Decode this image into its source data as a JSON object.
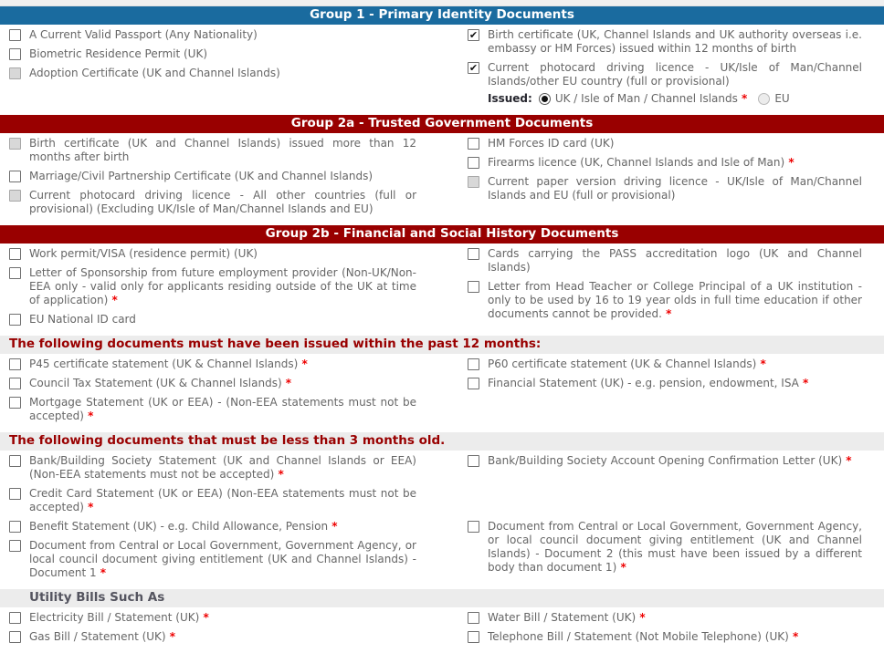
{
  "glyphs": {
    "check": "✔",
    "asterisk": "*"
  },
  "colors": {
    "header_blue": "#1a6b9f",
    "header_red": "#990000",
    "subheader_text": "#990000",
    "band_background": "#ececec",
    "label_text": "#666666",
    "required_asterisk": "#ee0000"
  },
  "sections": [
    {
      "id": "group1",
      "header": {
        "text": "Group 1 - Primary Identity Documents",
        "style": "blue"
      },
      "rows": [
        {
          "left": [
            {
              "label": "A Current Valid Passport (Any Nationality)"
            },
            {
              "label": "Biometric Residence Permit (UK)"
            },
            {
              "label": "Adoption Certificate (UK and Channel Islands)",
              "disabled": true
            }
          ],
          "right": [
            {
              "label": "Birth certificate (UK, Channel Islands and UK authority overseas i.e. embassy or HM Forces) issued within 12 months of birth",
              "checked": true
            },
            {
              "label": "Current photocard driving licence - UK/Isle of Man/Channel Islands/other EU country (full or provisional)",
              "checked": true,
              "radio": {
                "label": "Issued:",
                "options": [
                  {
                    "id": "uk",
                    "label": "UK / Isle of Man / Channel Islands",
                    "selected": true,
                    "required": true
                  },
                  {
                    "id": "eu",
                    "label": "EU",
                    "disabled": true
                  }
                ]
              }
            }
          ]
        }
      ]
    },
    {
      "id": "group2a",
      "header": {
        "text": "Group 2a - Trusted Government Documents",
        "style": "red"
      },
      "rows": [
        {
          "left": [
            {
              "label": "Birth certificate (UK and Channel Islands) issued more than 12 months after birth",
              "disabled": true
            },
            {
              "label": "Marriage/Civil Partnership Certificate (UK and Channel Islands)"
            },
            {
              "label": "Current photocard driving licence - All other countries (full or provisional) (Excluding UK/Isle of Man/Channel Islands and EU)",
              "disabled": true
            }
          ],
          "right": [
            {
              "label": "HM Forces ID card (UK)"
            },
            {
              "label": "Firearms licence (UK, Channel Islands and Isle of Man)",
              "required": true
            },
            {
              "label": "Current paper version driving licence - UK/Isle of Man/Channel Islands and EU (full or provisional)",
              "disabled": true
            }
          ]
        }
      ]
    },
    {
      "id": "group2b",
      "header": {
        "text": "Group 2b - Financial and Social History Documents",
        "style": "red"
      },
      "rows": [
        {
          "left": [
            {
              "label": "Work permit/VISA (residence permit) (UK)"
            },
            {
              "label": "Letter of Sponsorship from future employment provider (Non-UK/Non-EEA only - valid only for applicants residing outside of the UK at time of application)",
              "required": true
            },
            {
              "label": "EU National ID card"
            }
          ],
          "right": [
            {
              "label": "Cards carrying the PASS accreditation logo (UK and Channel Islands)"
            },
            {
              "label": "Letter from Head Teacher or College Principal of a UK institution - only to be used by 16 to 19 year olds in full time education if other documents cannot be provided.",
              "required": true
            }
          ]
        }
      ]
    },
    {
      "id": "past-12-months",
      "header": {
        "text": "The following documents must have been issued within the past 12 months:",
        "style": "band"
      },
      "rows": [
        {
          "left": [
            {
              "label": "P45 certificate statement (UK & Channel Islands)",
              "required": true
            },
            {
              "label": "Council Tax Statement (UK & Channel Islands)",
              "required": true
            },
            {
              "label": "Mortgage Statement (UK or EEA) - (Non-EEA statements must not be accepted)",
              "required": true
            }
          ],
          "right": [
            {
              "label": "P60 certificate statement (UK & Channel Islands)",
              "required": true
            },
            {
              "label": "Financial Statement (UK) - e.g. pension, endowment, ISA",
              "required": true
            }
          ]
        }
      ]
    },
    {
      "id": "less-3-months",
      "header": {
        "text": "The following documents that must be less than 3 months old.",
        "style": "band"
      },
      "rows": [
        {
          "left": [
            {
              "label": "Bank/Building Society Statement (UK and Channel Islands or EEA) (Non-EEA statements must not be accepted)",
              "required": true
            }
          ],
          "right": [
            {
              "label": "Bank/Building Society Account Opening Confirmation Letter (UK)",
              "required": true
            }
          ]
        },
        {
          "left": [
            {
              "label": "Credit Card Statement (UK or EEA) (Non-EEA statements must not be accepted)",
              "required": true
            }
          ],
          "right": []
        },
        {
          "left": [
            {
              "label": "Benefit Statement (UK) - e.g. Child Allowance, Pension",
              "required": true
            },
            {
              "label": "Document from Central or Local Government, Government Agency, or local council document giving entitlement (UK and Channel Islands) - Document 1",
              "required": true
            }
          ],
          "right": [
            {
              "label": "Document from Central or Local Government, Government Agency, or local council document giving entitlement (UK and Channel Islands) - Document 2 (this must have been issued by a different body than document 1)",
              "required": true
            }
          ]
        }
      ]
    },
    {
      "id": "utility-bills",
      "header": {
        "text": "Utility Bills Such As",
        "style": "band-grey"
      },
      "rows": [
        {
          "left": [
            {
              "label": "Electricity Bill / Statement (UK)",
              "required": true
            },
            {
              "label": "Gas Bill / Statement (UK)",
              "required": true
            }
          ],
          "right": [
            {
              "label": "Water Bill / Statement (UK)",
              "required": true
            },
            {
              "label": "Telephone Bill / Statement (Not Mobile Telephone) (UK)",
              "required": true
            }
          ]
        }
      ]
    }
  ]
}
